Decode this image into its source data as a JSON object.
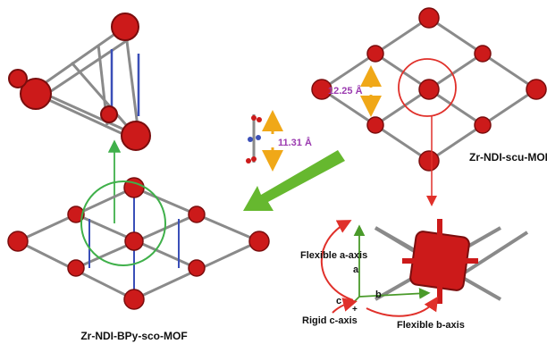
{
  "labels": {
    "scu_mof": "Zr-NDI-scu-MOF",
    "sco_mof": "Zr-NDI-BPy-sco-MOF",
    "dist_scu": "12.25 Å",
    "dist_linker": "11.31 Å",
    "flex_a": "Flexible a-axis",
    "flex_b": "Flexible b-axis",
    "rigid_c": "Rigid c-axis",
    "axis_a": "a",
    "axis_b": "b",
    "axis_c": "c"
  },
  "colors": {
    "cluster_red": "#cc1a1a",
    "cluster_dark": "#7a0d0d",
    "linker_gray": "#8a8a8a",
    "nitrogen_blue": "#3a4fb8",
    "distance_text": "#9b3bb0",
    "distance_arrow": "#f0a818",
    "green_arrow": "#66b82f",
    "highlight_green": "#3fb04a",
    "highlight_red": "#e0302a",
    "curved_arrow_red": "#e0302a",
    "axis_green": "#4a9a2a"
  }
}
